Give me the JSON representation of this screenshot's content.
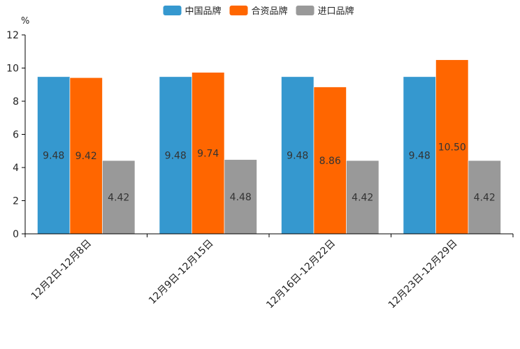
{
  "chart_data": {
    "type": "bar",
    "unit_label": "%",
    "categories": [
      "12月2日-12月8日",
      "12月9日-12月15日",
      "12月16日-12月22日",
      "12月23日-12月29日"
    ],
    "series": [
      {
        "name": "中国品牌",
        "color": "#3598CF",
        "values": [
          9.48,
          9.48,
          9.48,
          9.48
        ],
        "labels": [
          "9.48",
          "9.48",
          "9.48",
          "9.48"
        ]
      },
      {
        "name": "合资品牌",
        "color": "#FF6600",
        "values": [
          9.42,
          9.74,
          8.86,
          10.5
        ],
        "labels": [
          "9.42",
          "9.74",
          "8.86",
          "10.50"
        ]
      },
      {
        "name": "进口品牌",
        "color": "#999999",
        "values": [
          4.42,
          4.48,
          4.42,
          4.42
        ],
        "labels": [
          "4.42",
          "4.48",
          "4.42",
          "4.42"
        ]
      }
    ],
    "ylim": [
      0,
      12
    ],
    "yticks": [
      0,
      2,
      4,
      6,
      8,
      10,
      12
    ],
    "legend_position": "top-center",
    "grid": false
  }
}
